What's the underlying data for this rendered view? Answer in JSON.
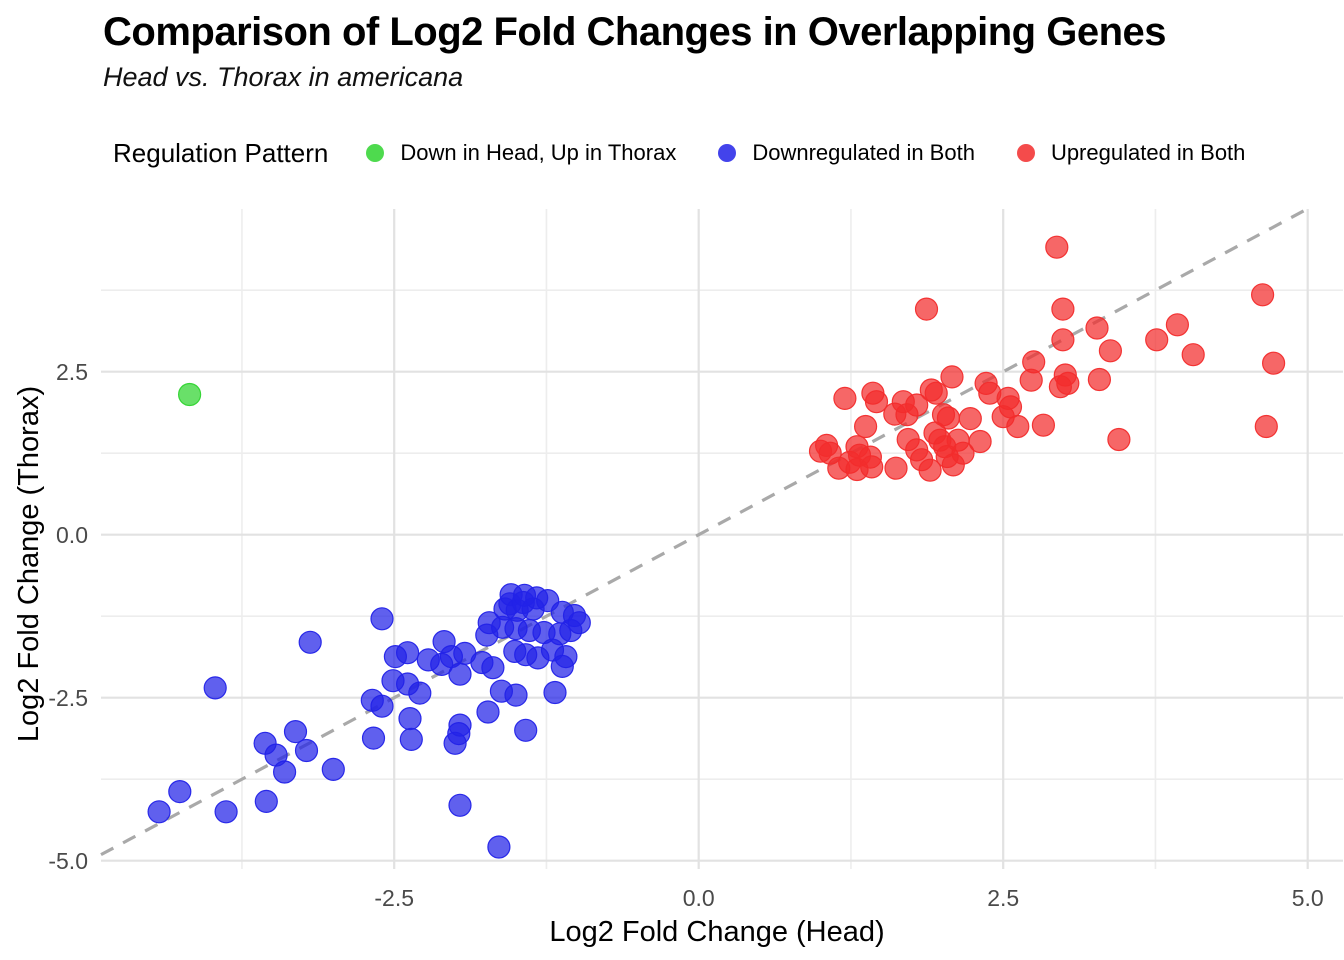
{
  "header": {
    "title": "Comparison of Log2 Fold Changes in Overlapping Genes",
    "subtitle": "Head vs. Thorax in americana"
  },
  "legend": {
    "title": "Regulation Pattern",
    "items": [
      {
        "label": "Down in Head, Up in Thorax",
        "color": "#2fd42f"
      },
      {
        "label": "Downregulated in Both",
        "color": "#2222e8"
      },
      {
        "label": "Upregulated in Both",
        "color": "#f22c2c"
      }
    ]
  },
  "chart_data": {
    "type": "scatter",
    "title": "Comparison of Log2 Fold Changes in Overlapping Genes",
    "subtitle": "Head vs. Thorax in americana",
    "xlabel": "Log2 Fold Change (Head)",
    "ylabel": "Log2 Fold Change (Thorax)",
    "xlim": [
      -4.9,
      5.3
    ],
    "ylim": [
      -5.15,
      5.0
    ],
    "x_ticks": [
      -2.5,
      0.0,
      2.5,
      5.0
    ],
    "y_ticks": [
      2.5,
      0.0,
      -2.5,
      -5.0
    ],
    "x_tick_labels": [
      "-2.5",
      "0.0",
      "2.5",
      "5.0"
    ],
    "y_tick_labels": [
      "2.5",
      "0.0",
      "-2.5",
      "-5.0"
    ],
    "x_minor_ticks": [
      -3.75,
      -1.25,
      1.25,
      3.75
    ],
    "y_minor_ticks": [
      3.75,
      1.25,
      -1.25,
      -3.75
    ],
    "grid": true,
    "legend_position": "top",
    "reference_line": {
      "type": "identity y=x",
      "style": "dashed",
      "color": "#a9a9a9"
    },
    "series": [
      {
        "name": "Down in Head, Up in Thorax",
        "color": "#2fd42f",
        "points": [
          [
            -4.18,
            2.15
          ]
        ]
      },
      {
        "name": "Downregulated in Both",
        "color": "#2222e8",
        "points": [
          [
            -4.43,
            -4.25
          ],
          [
            -4.26,
            -3.94
          ],
          [
            -3.97,
            -2.35
          ],
          [
            -3.88,
            -4.25
          ],
          [
            -3.56,
            -3.2
          ],
          [
            -3.55,
            -4.09
          ],
          [
            -3.47,
            -3.38
          ],
          [
            -3.4,
            -3.64
          ],
          [
            -3.31,
            -3.02
          ],
          [
            -3.22,
            -3.31
          ],
          [
            -3.19,
            -1.65
          ],
          [
            -3.0,
            -3.6
          ],
          [
            -2.68,
            -2.54
          ],
          [
            -2.67,
            -3.12
          ],
          [
            -2.6,
            -1.29
          ],
          [
            -2.6,
            -2.63
          ],
          [
            -2.51,
            -2.24
          ],
          [
            -2.49,
            -1.87
          ],
          [
            -2.39,
            -1.81
          ],
          [
            -2.39,
            -2.29
          ],
          [
            -2.37,
            -2.82
          ],
          [
            -2.36,
            -3.14
          ],
          [
            -2.29,
            -2.43
          ],
          [
            -2.22,
            -1.92
          ],
          [
            -2.11,
            -1.99
          ],
          [
            -2.09,
            -1.64
          ],
          [
            -2.03,
            -1.87
          ],
          [
            -2.0,
            -3.2
          ],
          [
            -1.97,
            -3.05
          ],
          [
            -1.96,
            -2.92
          ],
          [
            -1.96,
            -2.14
          ],
          [
            -1.96,
            -4.15
          ],
          [
            -1.92,
            -1.82
          ],
          [
            -1.78,
            -1.96
          ],
          [
            -1.74,
            -1.54
          ],
          [
            -1.73,
            -2.72
          ],
          [
            -1.72,
            -1.35
          ],
          [
            -1.69,
            -2.04
          ],
          [
            -1.64,
            -4.79
          ],
          [
            -1.62,
            -2.4
          ],
          [
            -1.61,
            -1.42
          ],
          [
            -1.59,
            -1.14
          ],
          [
            -1.55,
            -1.06
          ],
          [
            -1.54,
            -0.92
          ],
          [
            -1.51,
            -1.79
          ],
          [
            -1.5,
            -1.44
          ],
          [
            -1.5,
            -2.46
          ],
          [
            -1.49,
            -1.16
          ],
          [
            -1.44,
            -1.04
          ],
          [
            -1.43,
            -0.93
          ],
          [
            -1.42,
            -1.84
          ],
          [
            -1.42,
            -3.0
          ],
          [
            -1.39,
            -1.47
          ],
          [
            -1.36,
            -1.14
          ],
          [
            -1.33,
            -0.97
          ],
          [
            -1.32,
            -1.89
          ],
          [
            -1.27,
            -1.5
          ],
          [
            -1.24,
            -1.01
          ],
          [
            -1.2,
            -1.77
          ],
          [
            -1.18,
            -2.42
          ],
          [
            -1.14,
            -1.52
          ],
          [
            -1.12,
            -1.19
          ],
          [
            -1.12,
            -2.02
          ],
          [
            -1.09,
            -1.87
          ],
          [
            -1.05,
            -1.47
          ],
          [
            -1.02,
            -1.24
          ],
          [
            -0.98,
            -1.35
          ]
        ]
      },
      {
        "name": "Upregulated in Both",
        "color": "#f22c2c",
        "points": [
          [
            1.0,
            1.28
          ],
          [
            1.05,
            1.37
          ],
          [
            1.08,
            1.25
          ],
          [
            1.15,
            1.02
          ],
          [
            1.2,
            2.09
          ],
          [
            1.24,
            1.11
          ],
          [
            1.3,
            1.35
          ],
          [
            1.3,
            1.0
          ],
          [
            1.32,
            1.22
          ],
          [
            1.37,
            1.66
          ],
          [
            1.41,
            1.19
          ],
          [
            1.42,
            1.04
          ],
          [
            1.43,
            2.17
          ],
          [
            1.46,
            2.04
          ],
          [
            1.61,
            1.85
          ],
          [
            1.62,
            1.02
          ],
          [
            1.68,
            2.04
          ],
          [
            1.71,
            1.84
          ],
          [
            1.72,
            1.46
          ],
          [
            1.79,
            1.99
          ],
          [
            1.79,
            1.3
          ],
          [
            1.83,
            1.15
          ],
          [
            1.87,
            3.46
          ],
          [
            1.9,
            0.99
          ],
          [
            1.91,
            2.22
          ],
          [
            1.95,
            2.17
          ],
          [
            1.94,
            1.56
          ],
          [
            1.98,
            1.45
          ],
          [
            2.01,
            1.84
          ],
          [
            2.02,
            1.35
          ],
          [
            2.04,
            1.2
          ],
          [
            2.05,
            1.79
          ],
          [
            2.08,
            2.42
          ],
          [
            2.09,
            1.07
          ],
          [
            2.13,
            1.45
          ],
          [
            2.17,
            1.25
          ],
          [
            2.23,
            1.78
          ],
          [
            2.31,
            1.43
          ],
          [
            2.36,
            2.32
          ],
          [
            2.39,
            2.17
          ],
          [
            2.5,
            1.81
          ],
          [
            2.54,
            2.09
          ],
          [
            2.56,
            1.96
          ],
          [
            2.62,
            1.66
          ],
          [
            2.73,
            2.37
          ],
          [
            2.75,
            2.65
          ],
          [
            2.83,
            1.68
          ],
          [
            2.94,
            4.41
          ],
          [
            2.97,
            2.27
          ],
          [
            2.99,
            3.46
          ],
          [
            2.99,
            2.99
          ],
          [
            3.01,
            2.45
          ],
          [
            3.03,
            2.32
          ],
          [
            3.27,
            3.17
          ],
          [
            3.29,
            2.38
          ],
          [
            3.38,
            2.82
          ],
          [
            3.45,
            1.46
          ],
          [
            3.76,
            2.99
          ],
          [
            3.93,
            3.22
          ],
          [
            4.06,
            2.76
          ],
          [
            4.63,
            3.68
          ],
          [
            4.72,
            2.63
          ],
          [
            4.66,
            1.66
          ]
        ]
      }
    ]
  }
}
